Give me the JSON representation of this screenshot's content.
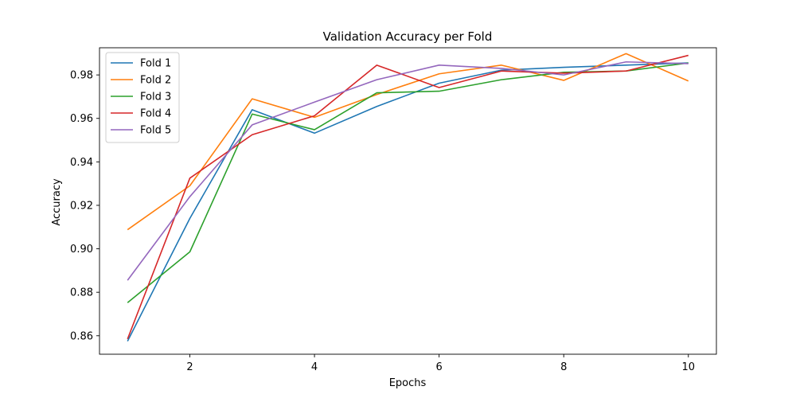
{
  "chart_data": {
    "type": "line",
    "title": "Validation Accuracy per Fold",
    "xlabel": "Epochs",
    "ylabel": "Accuracy",
    "xlim": [
      0.55,
      10.45
    ],
    "ylim": [
      0.8515,
      0.9925
    ],
    "x_ticks": [
      2,
      4,
      6,
      8,
      10
    ],
    "y_ticks": [
      0.86,
      0.88,
      0.9,
      0.92,
      0.94,
      0.96,
      0.98
    ],
    "x_tick_labels": [
      "2",
      "4",
      "6",
      "8",
      "10"
    ],
    "y_tick_labels": [
      "0.86",
      "0.88",
      "0.90",
      "0.92",
      "0.94",
      "0.96",
      "0.98"
    ],
    "grid": false,
    "legend_position": "top-left",
    "x": [
      1,
      2,
      3,
      4,
      5,
      6,
      7,
      8,
      9,
      10
    ],
    "series": [
      {
        "name": "Fold 1",
        "color": "#1f77b4",
        "values": [
          0.8575,
          0.914,
          0.964,
          0.9532,
          0.9655,
          0.9762,
          0.9822,
          0.9835,
          0.9845,
          0.9855
        ]
      },
      {
        "name": "Fold 2",
        "color": "#ff7f0e",
        "values": [
          0.9088,
          0.929,
          0.969,
          0.9605,
          0.971,
          0.9805,
          0.9845,
          0.9775,
          0.9898,
          0.9772
        ]
      },
      {
        "name": "Fold 3",
        "color": "#2ca02c",
        "values": [
          0.8752,
          0.8986,
          0.962,
          0.9548,
          0.9718,
          0.9725,
          0.9778,
          0.9812,
          0.9818,
          0.9855
        ]
      },
      {
        "name": "Fold 4",
        "color": "#d62728",
        "values": [
          0.8585,
          0.9325,
          0.9525,
          0.9612,
          0.9845,
          0.9742,
          0.9818,
          0.9808,
          0.9818,
          0.989
        ]
      },
      {
        "name": "Fold 5",
        "color": "#9467bd",
        "values": [
          0.8855,
          0.924,
          0.957,
          0.9675,
          0.9778,
          0.9845,
          0.983,
          0.98,
          0.986,
          0.9852
        ]
      }
    ]
  }
}
